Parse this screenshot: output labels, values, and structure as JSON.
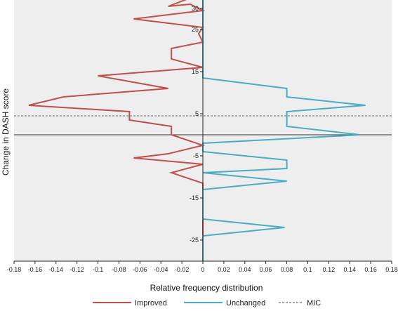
{
  "chart_data": {
    "type": "line",
    "xlabel": "Relative frequency distribution",
    "ylabel": "Change in DASH score",
    "xlim": [
      -0.18,
      0.18
    ],
    "ylim": [
      -30,
      32
    ],
    "grid": false,
    "background": "#eeeeee",
    "x_ticks": [
      "-0.18",
      "-0.16",
      "-0.14",
      "-0.12",
      "-0.1",
      "-0.08",
      "-0.06",
      "-0.04",
      "-0.02",
      "0",
      "0.02",
      "0.04",
      "0.06",
      "0.08",
      "0.1",
      "0.12",
      "0.14",
      "0.16",
      "0.18"
    ],
    "y_ticks": [
      "30",
      "25",
      "15",
      "5",
      "-5",
      "-15",
      "-25"
    ],
    "reference_lines": [
      {
        "name": "MIC",
        "y": 4.5,
        "style": "dashed"
      },
      {
        "name": "zero",
        "y": 0,
        "style": "solid"
      }
    ],
    "legend_position": "bottom",
    "series": [
      {
        "name": "Improved",
        "color": "#c0504d",
        "points": [
          {
            "x": -0.012,
            "y": 32.5
          },
          {
            "x": -0.033,
            "y": 30.5
          },
          {
            "x": -0.012,
            "y": 31.0
          },
          {
            "x": 0.0,
            "y": 29.5
          },
          {
            "x": -0.066,
            "y": 27.5
          },
          {
            "x": 0.0,
            "y": 25.5
          },
          {
            "x": -0.004,
            "y": 24.0
          },
          {
            "x": 0.0,
            "y": 22.0
          },
          {
            "x": -0.03,
            "y": 20.5
          },
          {
            "x": -0.03,
            "y": 18.0
          },
          {
            "x": 0.0,
            "y": 16.0
          },
          {
            "x": -0.1,
            "y": 14.0
          },
          {
            "x": -0.033,
            "y": 11.0
          },
          {
            "x": -0.133,
            "y": 9.0
          },
          {
            "x": -0.166,
            "y": 7.0
          },
          {
            "x": -0.07,
            "y": 5.5
          },
          {
            "x": -0.07,
            "y": 3.5
          },
          {
            "x": -0.03,
            "y": 2.0
          },
          {
            "x": -0.03,
            "y": 0.0
          },
          {
            "x": 0.0,
            "y": -2.5
          },
          {
            "x": -0.033,
            "y": -4.5
          },
          {
            "x": -0.066,
            "y": -5.5
          },
          {
            "x": 0.0,
            "y": -7.0
          },
          {
            "x": -0.03,
            "y": -9.0
          },
          {
            "x": 0.0,
            "y": -11.5
          },
          {
            "x": 0.0,
            "y": -30.0
          }
        ]
      },
      {
        "name": "Unchanged",
        "color": "#4bacc6",
        "points": [
          {
            "x": 0.0,
            "y": 32.5
          },
          {
            "x": 0.0,
            "y": 13.5
          },
          {
            "x": 0.08,
            "y": 11.0
          },
          {
            "x": 0.08,
            "y": 9.0
          },
          {
            "x": 0.155,
            "y": 7.0
          },
          {
            "x": 0.08,
            "y": 5.5
          },
          {
            "x": 0.08,
            "y": 2.0
          },
          {
            "x": 0.15,
            "y": 0.0
          },
          {
            "x": 0.0,
            "y": -2.0
          },
          {
            "x": 0.0,
            "y": -4.0
          },
          {
            "x": 0.08,
            "y": -6.0
          },
          {
            "x": 0.08,
            "y": -8.0
          },
          {
            "x": 0.0,
            "y": -9.0
          },
          {
            "x": 0.08,
            "y": -11.0
          },
          {
            "x": 0.0,
            "y": -13.0
          },
          {
            "x": 0.0,
            "y": -20.0
          },
          {
            "x": 0.078,
            "y": -22.0
          },
          {
            "x": 0.0,
            "y": -24.0
          },
          {
            "x": 0.0,
            "y": -30.0
          }
        ]
      }
    ],
    "legend": [
      {
        "label": "Improved",
        "color": "#c0504d",
        "style": "solid"
      },
      {
        "label": "Unchanged",
        "color": "#4bacc6",
        "style": "solid"
      },
      {
        "label": "MIC",
        "color": "#555555",
        "style": "dashed"
      }
    ]
  }
}
